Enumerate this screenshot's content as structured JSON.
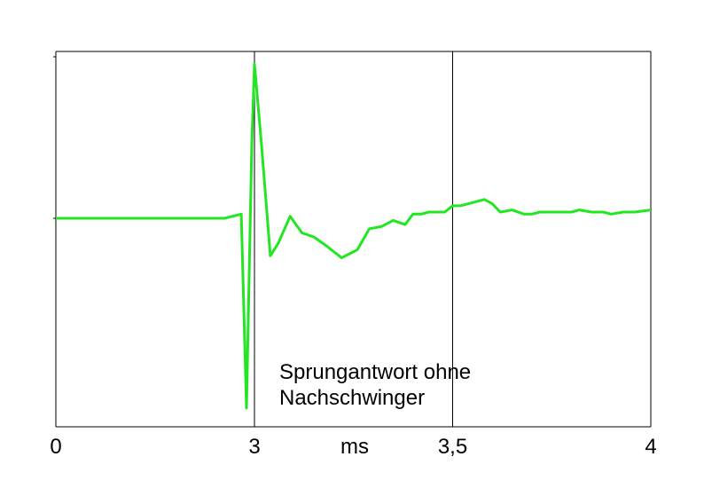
{
  "chart_data": {
    "type": "line",
    "title": "",
    "xlabel": "ms",
    "ylabel": "",
    "xlim": [
      0,
      4
    ],
    "xticks": [
      {
        "value": 0,
        "label": "0"
      },
      {
        "value": 3,
        "label": "3"
      },
      {
        "value": 3.5,
        "label": "3,5"
      },
      {
        "value": 4,
        "label": "4"
      }
    ],
    "axis_scale_note": "0 to 3 ms compressed; linear from 3 to 4 ms",
    "ylim": [
      -1.0,
      0.8
    ],
    "grid_lines_x": [
      3,
      3.5
    ],
    "line_color": "#22e622",
    "annotation": [
      "Sprungantwort ohne",
      "Nachschwinger"
    ],
    "series": [
      {
        "x": [
          0,
          2.55,
          2.8,
          2.88,
          2.96,
          3.0,
          3.017,
          3.04,
          3.06,
          3.09,
          3.12,
          3.15,
          3.18,
          3.22,
          3.24,
          3.26,
          3.29,
          3.32,
          3.35,
          3.38,
          3.4,
          3.42,
          3.44,
          3.46,
          3.48,
          3.5,
          3.52,
          3.54,
          3.56,
          3.58,
          3.6,
          3.62,
          3.65,
          3.68,
          3.7,
          3.72,
          3.75,
          3.78,
          3.8,
          3.82,
          3.85,
          3.88,
          3.9,
          3.93,
          3.96,
          4.0
        ],
        "y": [
          0,
          0,
          0.02,
          -0.91,
          0.36,
          0.74,
          0.37,
          -0.18,
          -0.12,
          0.01,
          -0.07,
          -0.09,
          -0.13,
          -0.19,
          -0.17,
          -0.15,
          -0.05,
          -0.04,
          -0.01,
          -0.03,
          0.02,
          0.02,
          0.03,
          0.03,
          0.03,
          0.06,
          0.06,
          0.07,
          0.08,
          0.09,
          0.07,
          0.03,
          0.04,
          0.02,
          0.02,
          0.03,
          0.03,
          0.03,
          0.03,
          0.04,
          0.03,
          0.03,
          0.02,
          0.03,
          0.03,
          0.04
        ]
      }
    ]
  }
}
